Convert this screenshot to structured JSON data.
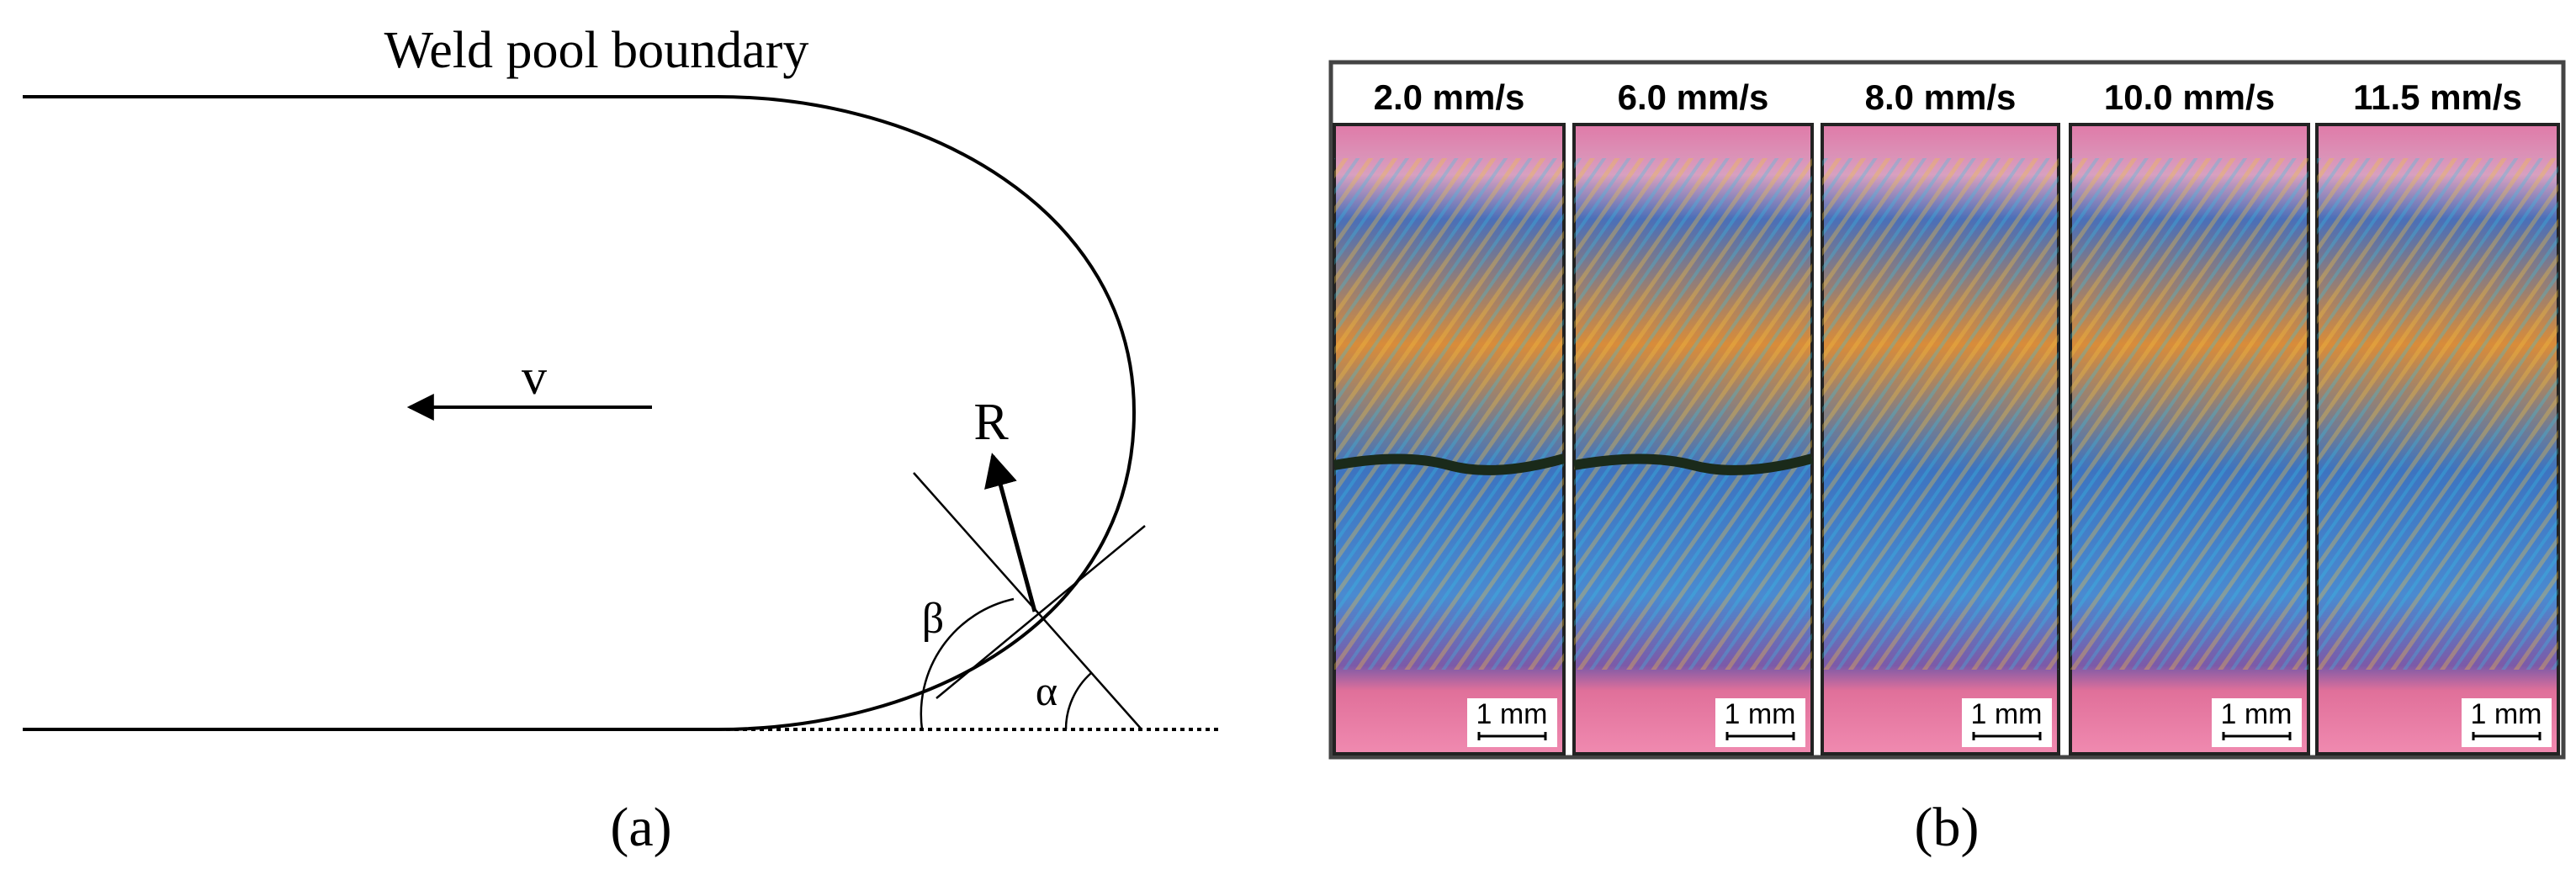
{
  "panel_a": {
    "title": "Weld pool boundary",
    "velocity_label": "v",
    "radius_label": "R",
    "beta_label": "β",
    "alpha_label": "α",
    "caption": "(a)"
  },
  "panel_b": {
    "panels": [
      {
        "label": "2.0 mm/s",
        "scale_bar": "1 mm"
      },
      {
        "label": "6.0 mm/s",
        "scale_bar": "1 mm"
      },
      {
        "label": "8.0 mm/s",
        "scale_bar": "1 mm"
      },
      {
        "label": "10.0 mm/s",
        "scale_bar": "1 mm"
      },
      {
        "label": "11.5 mm/s",
        "scale_bar": "1 mm"
      }
    ],
    "caption": "(b)"
  }
}
